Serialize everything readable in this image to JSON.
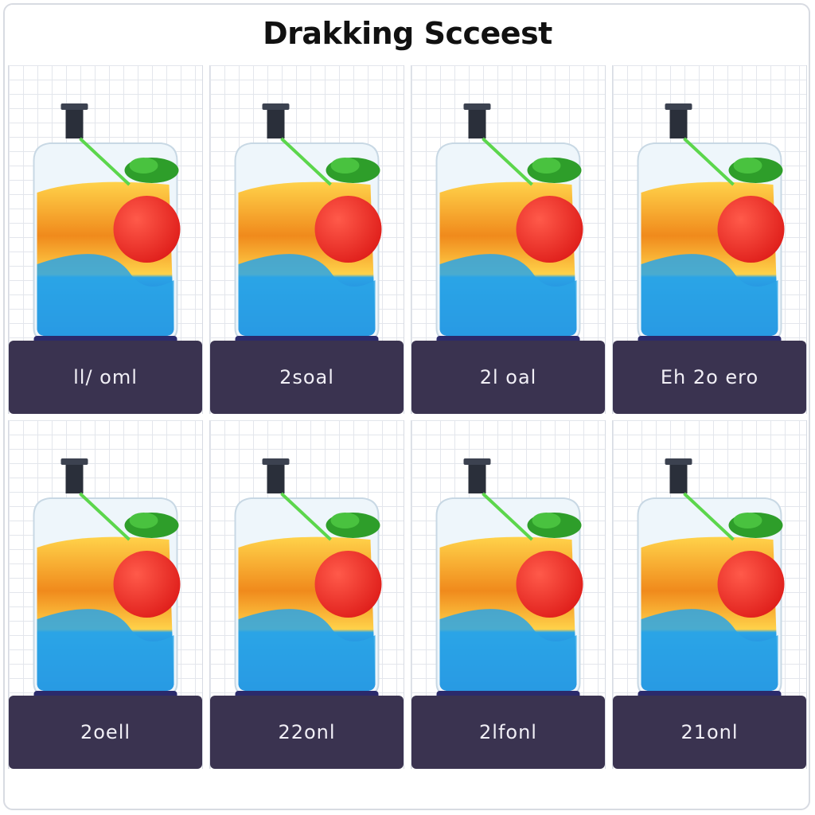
{
  "title": "Drakking Scceest",
  "colors": {
    "label_bar": "#3a3350",
    "liquid_orange": "#f08a1c",
    "liquid_yellow": "#ffd24a",
    "liquid_blue": "#2aa4e6",
    "cherry": "#e0201c",
    "mint": "#2e9e2a"
  },
  "cards": [
    {
      "label": "ll/ oml",
      "icon": "drink-jar-icon"
    },
    {
      "label": "2soal",
      "icon": "drink-jar-icon"
    },
    {
      "label": "2l oal",
      "icon": "drink-jar-icon"
    },
    {
      "label": "Eh 2o ero",
      "icon": "drink-jar-icon"
    },
    {
      "label": "2oell",
      "icon": "drink-jar-icon"
    },
    {
      "label": "22onl",
      "icon": "drink-jar-icon"
    },
    {
      "label": "2lfonl",
      "icon": "drink-jar-icon"
    },
    {
      "label": "21onl",
      "icon": "drink-jar-icon"
    }
  ]
}
